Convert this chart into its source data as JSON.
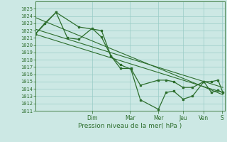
{
  "background_color": "#cce8e4",
  "grid_color": "#99ccc6",
  "line_color": "#2d6e2d",
  "xlabel": "Pression niveau de la mer( hPa )",
  "ylim": [
    1011,
    1026
  ],
  "yticks": [
    1011,
    1012,
    1013,
    1014,
    1015,
    1016,
    1017,
    1018,
    1019,
    1020,
    1021,
    1022,
    1023,
    1024,
    1025
  ],
  "day_labels": [
    "Dim",
    "Mar",
    "Mer",
    "Jeu",
    "Ven",
    "S"
  ],
  "day_positions": [
    3.0,
    5.0,
    6.5,
    7.8,
    8.9,
    9.85
  ],
  "series1_x": [
    0.0,
    0.5,
    1.1,
    1.7,
    2.3,
    3.0,
    3.5,
    4.0,
    4.5,
    5.05,
    5.55,
    6.5,
    6.9,
    7.3,
    7.8,
    8.3,
    8.9,
    9.3,
    9.65,
    9.9
  ],
  "series1_y": [
    1021.5,
    1023.0,
    1024.5,
    1021.0,
    1020.8,
    1022.3,
    1021.1,
    1018.5,
    1017.3,
    1016.7,
    1012.5,
    1011.2,
    1013.5,
    1013.7,
    1012.6,
    1013.0,
    1015.0,
    1013.5,
    1013.8,
    1013.5
  ],
  "series2_x": [
    0.0,
    1.1,
    2.3,
    3.5,
    4.0,
    4.5,
    5.05,
    5.55,
    6.5,
    6.9,
    7.3,
    7.8,
    8.3,
    8.9,
    9.3,
    9.65,
    9.9
  ],
  "series2_y": [
    1021.5,
    1024.5,
    1022.5,
    1022.0,
    1018.5,
    1016.8,
    1016.8,
    1014.5,
    1015.2,
    1015.2,
    1015.0,
    1014.2,
    1014.2,
    1015.0,
    1015.0,
    1015.2,
    1013.5
  ],
  "trend1_x": [
    0.0,
    9.9
  ],
  "trend1_y": [
    1021.5,
    1013.5
  ],
  "trend2_x": [
    0.0,
    9.9
  ],
  "trend2_y": [
    1023.8,
    1013.2
  ],
  "trend3_x": [
    0.0,
    9.9
  ],
  "trend3_y": [
    1022.2,
    1014.2
  ],
  "xlim": [
    0.0,
    10.0
  ]
}
